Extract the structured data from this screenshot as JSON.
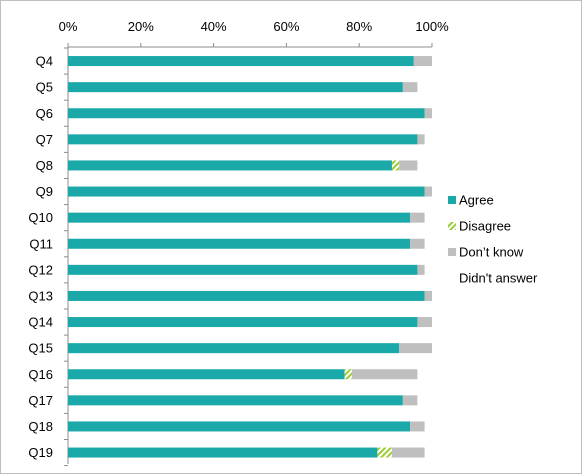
{
  "chart_data": {
    "type": "bar",
    "orientation": "horizontal",
    "stacked": true,
    "percent_axis": true,
    "axis_position": "top",
    "grid": false,
    "legend_position": "right",
    "xlim": [
      0,
      100
    ],
    "x_ticks": [
      "0%",
      "20%",
      "40%",
      "60%",
      "80%",
      "100%"
    ],
    "categories": [
      "Q4",
      "Q5",
      "Q6",
      "Q7",
      "Q8",
      "Q9",
      "Q10",
      "Q11",
      "Q12",
      "Q13",
      "Q14",
      "Q15",
      "Q16",
      "Q17",
      "Q18",
      "Q19"
    ],
    "series": [
      {
        "name": "Agree",
        "color": "#1aa8a8",
        "pattern": "solid",
        "values": [
          95,
          92,
          98,
          96,
          89,
          98,
          94,
          94,
          96,
          98,
          96,
          91,
          76,
          92,
          94,
          85
        ]
      },
      {
        "name": "Disagree",
        "color": "#9acd32",
        "pattern": "hatch",
        "values": [
          0,
          0,
          0,
          0,
          2,
          0,
          0,
          0,
          0,
          0,
          0,
          0,
          2,
          0,
          0,
          4
        ]
      },
      {
        "name": "Don’t know",
        "color": "#bfbfbf",
        "pattern": "solid",
        "values": [
          5,
          4,
          2,
          2,
          5,
          2,
          4,
          4,
          2,
          2,
          4,
          9,
          18,
          4,
          4,
          9
        ]
      },
      {
        "name": "Didn't answer",
        "color": "#ffffff",
        "pattern": "solid",
        "values": [
          0,
          4,
          0,
          2,
          4,
          0,
          2,
          2,
          2,
          0,
          0,
          0,
          4,
          4,
          2,
          2
        ]
      }
    ]
  }
}
